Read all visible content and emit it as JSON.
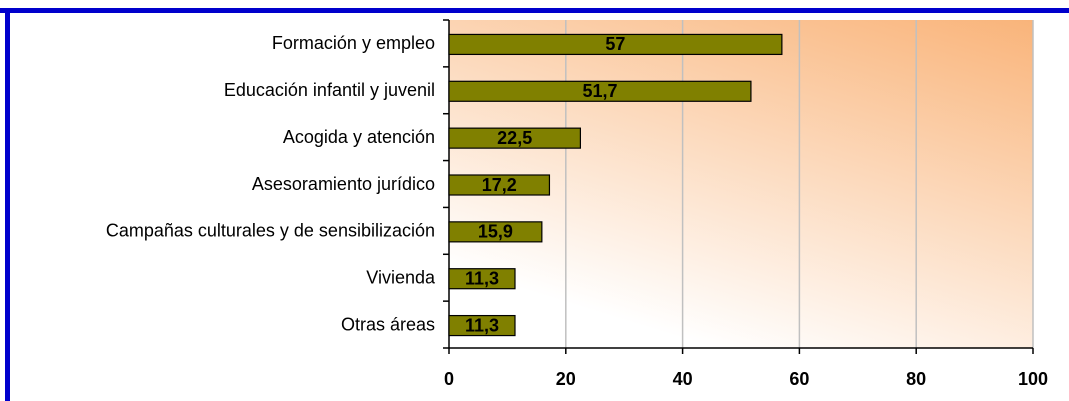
{
  "chart_data": {
    "type": "barh",
    "categories": [
      "Formación y empleo",
      "Educación infantil y juvenil",
      "Acogida y atención",
      "Asesoramiento jurídico",
      "Campañas culturales y de sensibilización",
      "Vivienda",
      "Otras áreas"
    ],
    "values": [
      57,
      51.7,
      22.5,
      17.2,
      15.9,
      11.3,
      11.3
    ],
    "value_labels": [
      "57",
      "51,7",
      "22,5",
      "17,2",
      "15,9",
      "11,3",
      "11,3"
    ],
    "color": "#808000",
    "xlim": [
      0,
      100
    ],
    "xticks": [
      0,
      20,
      40,
      60,
      80,
      100
    ],
    "grid": true
  }
}
